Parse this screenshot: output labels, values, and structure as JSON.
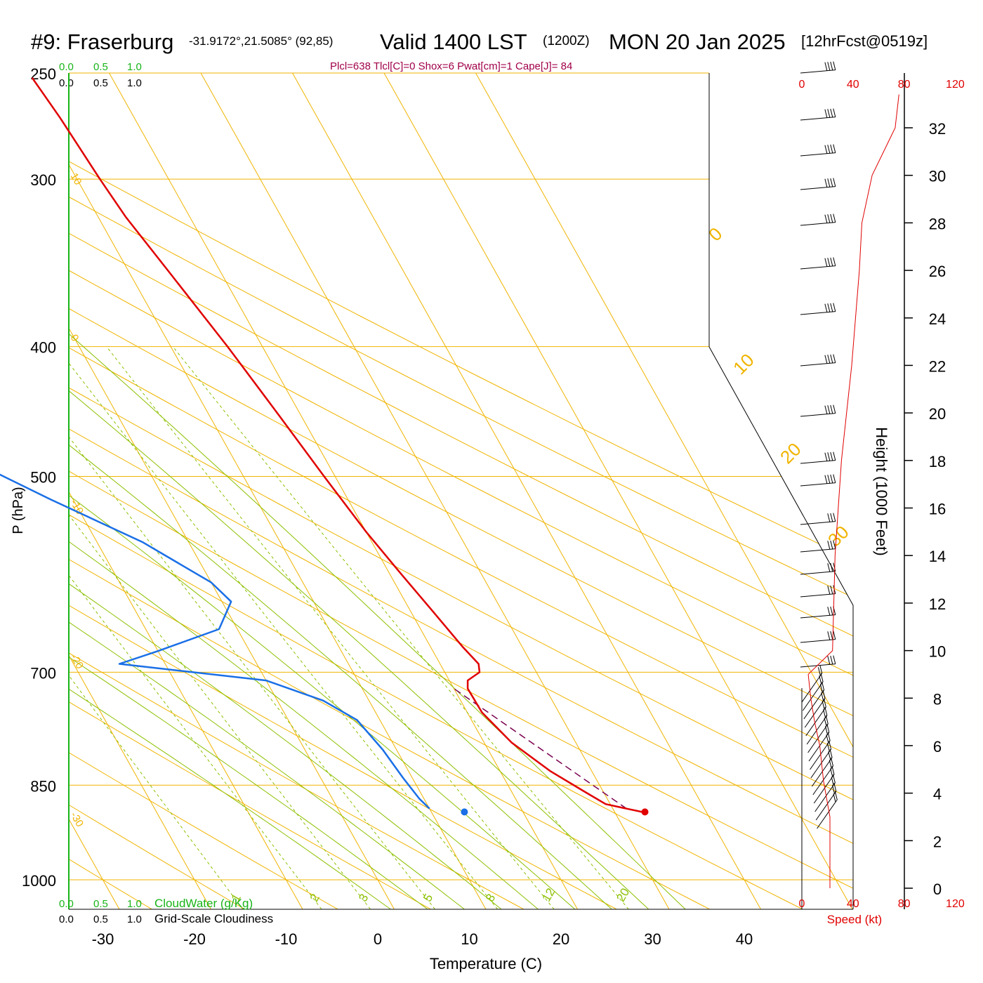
{
  "header": {
    "station": "#9: Fraserburg",
    "coords": "-31.9172°,21.5085° (92,85)",
    "valid": "Valid 1400 LST",
    "zulu": "(1200Z)",
    "date": "MON 20 Jan 2025",
    "forecast": "[12hrFcst@0519z]"
  },
  "indices": "Plcl=638 Tlcl[C]=0 Shox=6 Pwat[cm]=1 Cape[J]= 84",
  "colors": {
    "temperature": "#e00000",
    "dewpoint": "#1a6fe6",
    "isobars_isotherms": "#f0b400",
    "dry_adiabats": "#f0b400",
    "moist_adiabats": "#8cc000",
    "mixing_ratio": "#8cc000",
    "parcel": "#7a0050",
    "speed": "#e00000",
    "title_indices": "#a0004a",
    "scale_green": "#18b418"
  },
  "labels": {
    "xlabel": "Temperature (C)",
    "ylabel": "P (hPa)",
    "height_label": "Height (1000 Feet)",
    "speed_label": "Speed (kt)",
    "cloudwater": "CloudWater (g/Kg)",
    "cloudiness": "Grid-Scale Cloudiness",
    "scale_vals": [
      "0.0",
      "0.5",
      "1.0"
    ]
  },
  "chart_data": {
    "type": "skew-t",
    "xlabel": "Temperature (C)",
    "ylabel": "P (hPa)",
    "x_ticks": [
      -30,
      -20,
      -10,
      0,
      10,
      20,
      30,
      40
    ],
    "p_ticks": [
      250,
      300,
      400,
      500,
      700,
      850,
      1000
    ],
    "height_ticks": [
      0,
      2,
      4,
      6,
      8,
      10,
      12,
      14,
      16,
      18,
      20,
      22,
      24,
      26,
      28,
      30,
      32
    ],
    "speed_ticks": [
      0,
      40,
      80,
      120
    ],
    "theta_labels": [
      10,
      0,
      -10,
      -20,
      -30,
      0,
      10,
      20,
      30
    ],
    "mixing_ratio_labels": [
      "1",
      "2",
      "3",
      "5",
      "8",
      "12",
      "20"
    ],
    "temperature": [
      [
        890,
        33.0
      ],
      [
        885,
        31.5
      ],
      [
        878,
        29.5
      ],
      [
        860,
        28.0
      ],
      [
        830,
        25.5
      ],
      [
        790,
        23.0
      ],
      [
        750,
        21.6
      ],
      [
        720,
        21.5
      ],
      [
        710,
        22.0
      ],
      [
        700,
        23.8
      ],
      [
        690,
        24.2
      ],
      [
        670,
        23.5
      ],
      [
        630,
        22.4
      ],
      [
        590,
        21.2
      ],
      [
        550,
        20.0
      ],
      [
        500,
        18.8
      ],
      [
        450,
        17.6
      ],
      [
        400,
        16.2
      ],
      [
        350,
        14.3
      ],
      [
        320,
        13.0
      ],
      [
        300,
        12.5
      ],
      [
        270,
        11.9
      ],
      [
        252,
        11.3
      ]
    ],
    "dewpoint": [
      [
        885,
        10.0
      ],
      [
        870,
        9.5
      ],
      [
        840,
        9.0
      ],
      [
        800,
        8.5
      ],
      [
        760,
        7.5
      ],
      [
        735,
        5.0
      ],
      [
        710,
        0.0
      ],
      [
        690,
        -15.0
      ],
      [
        675,
        -10.0
      ],
      [
        650,
        -2.0
      ],
      [
        620,
        1.0
      ],
      [
        600,
        0.0
      ],
      [
        560,
        -5.0
      ],
      [
        520,
        -12.5
      ],
      [
        480,
        -20.0
      ],
      [
        440,
        -24.0
      ],
      [
        410,
        -24.0
      ],
      [
        380,
        -17.0
      ],
      [
        350,
        -14.5
      ],
      [
        330,
        -17.0
      ],
      [
        310,
        -19.5
      ],
      [
        290,
        -21.5
      ],
      [
        270,
        -21.5
      ],
      [
        252,
        -22.0
      ]
    ],
    "surface_temperature": [
      890,
      33.3
    ],
    "surface_dewpoint": [
      890,
      13.6
    ],
    "parcel": [
      [
        885,
        31.5
      ],
      [
        720,
        20.0
      ]
    ],
    "wind_speed_kt": [
      [
        0.0,
        22
      ],
      [
        3.0,
        22
      ],
      [
        4.5,
        17
      ],
      [
        6.0,
        14
      ],
      [
        7.0,
        10
      ],
      [
        8.0,
        7
      ],
      [
        9.0,
        5
      ],
      [
        10.0,
        24
      ],
      [
        14.0,
        26
      ],
      [
        18.0,
        31
      ],
      [
        22.0,
        39
      ],
      [
        26.0,
        45
      ],
      [
        28.0,
        47
      ],
      [
        30.0,
        55
      ],
      [
        32.0,
        73
      ],
      [
        33.4,
        76
      ]
    ]
  }
}
